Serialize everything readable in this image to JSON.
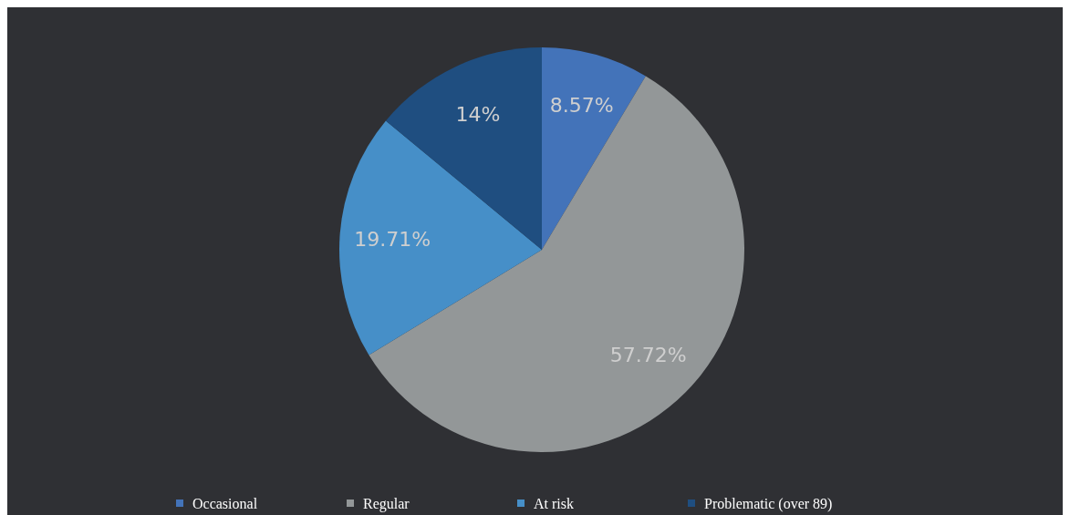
{
  "chart_data": {
    "type": "pie",
    "categories": [
      "Occasional",
      "Regular",
      "At risk",
      "Problematic (over 89)"
    ],
    "values": [
      8.57,
      57.72,
      19.71,
      14
    ],
    "value_labels": [
      "8.57%",
      "57.72%",
      "19.71%",
      "14%"
    ],
    "colors": [
      "#4373b9",
      "#939798",
      "#468fc8",
      "#1f4e80"
    ],
    "legend": "bottom"
  }
}
